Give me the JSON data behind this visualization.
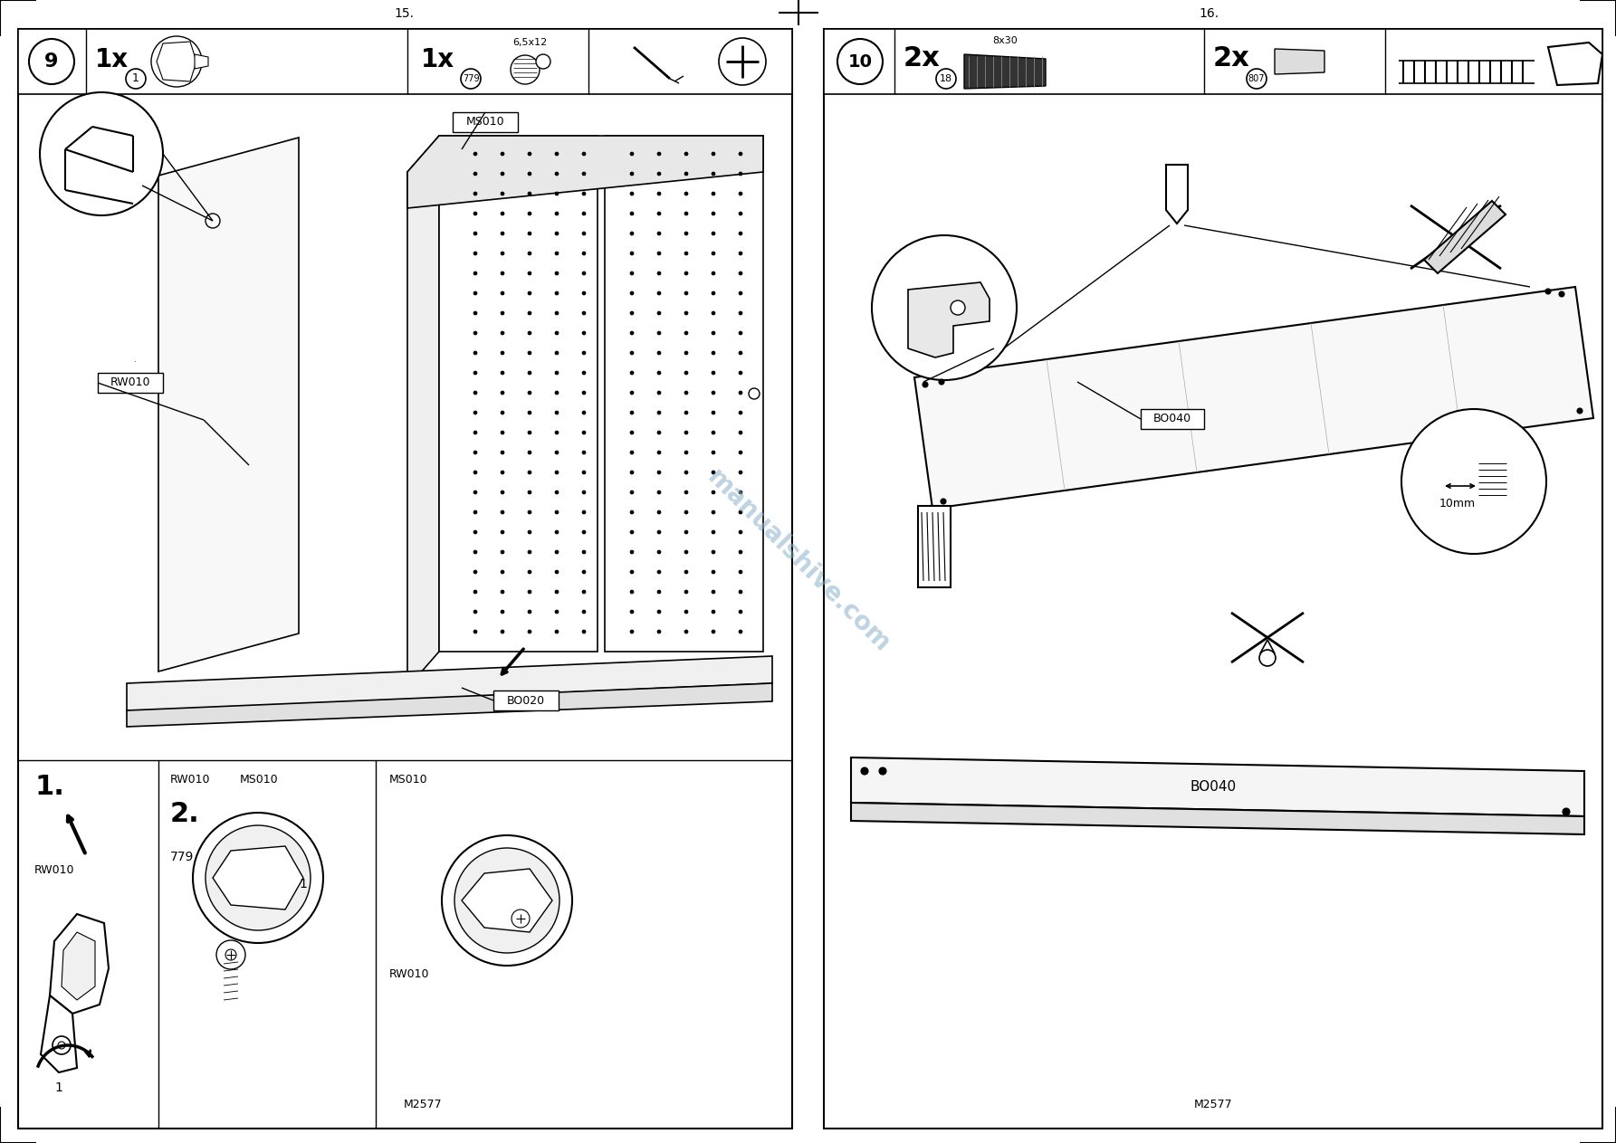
{
  "page_width": 17.85,
  "page_height": 12.63,
  "dpi": 100,
  "bg": "#ffffff",
  "lc": "#000000",
  "tc": "#000000",
  "wc": "#8ab0cc",
  "page_num_left": "15.",
  "page_num_right": "16.",
  "step_left": "9",
  "step_right": "10",
  "bottom_left": "M2577",
  "bottom_right": "M2577",
  "watermark": "manualshive.com",
  "size_left": "6,5x12",
  "size_right": "8x30",
  "qty_l1": "1x",
  "qty_l2": "1x",
  "qty_r1": "2x",
  "qty_r2": "2x",
  "pn_l1": "1",
  "pn_l2": "779",
  "pn_r1": "18",
  "pn_r2": "807",
  "lbl_ms010": "MS010",
  "lbl_rw010": "RW010",
  "lbl_bo020": "BO020",
  "lbl_bo040": "BO040",
  "lbl_10mm": "10mm",
  "lbl_1": "1.",
  "lbl_2": "2.",
  "lbl_rw010_b": "RW010",
  "lbl_1num": "1",
  "lbl_779": "779",
  "lbl_ms010_b": "MS010",
  "lbl_ms010_c": "MS010",
  "lbl_rw010_c": "RW010"
}
